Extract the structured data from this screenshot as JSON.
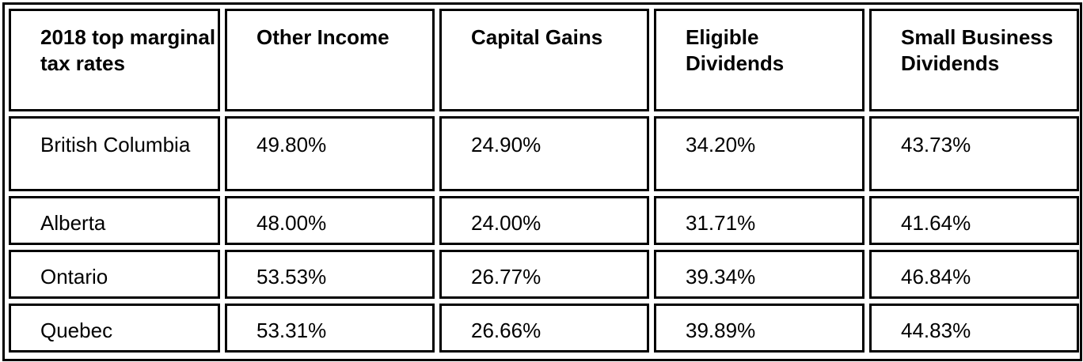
{
  "table": {
    "headers": [
      "2018 top marginal tax rates",
      "Other Income",
      "Capital Gains",
      "Eligible Dividends",
      "Small Business Dividends"
    ],
    "rows": [
      {
        "province": "British Columbia",
        "other_income": "49.80%",
        "capital_gains": "24.90%",
        "eligible_dividends": "34.20%",
        "small_business_dividends": "43.73%"
      },
      {
        "province": "Alberta",
        "other_income": "48.00%",
        "capital_gains": "24.00%",
        "eligible_dividends": "31.71%",
        "small_business_dividends": "41.64%"
      },
      {
        "province": "Ontario",
        "other_income": "53.53%",
        "capital_gains": "26.77%",
        "eligible_dividends": "39.34%",
        "small_business_dividends": "46.84%"
      },
      {
        "province": "Quebec",
        "other_income": "53.31%",
        "capital_gains": "26.66%",
        "eligible_dividends": "39.89%",
        "small_business_dividends": "44.83%"
      }
    ]
  },
  "colors": {
    "border": "#000000",
    "background": "#ffffff",
    "text": "#000000"
  }
}
